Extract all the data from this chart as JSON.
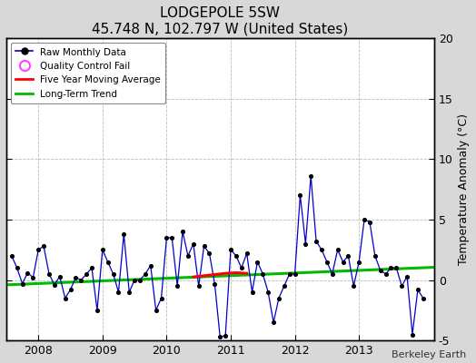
{
  "title": "LODGEPOLE 5SW",
  "subtitle": "45.748 N, 102.797 W (United States)",
  "ylabel": "Temperature Anomaly (°C)",
  "credit": "Berkeley Earth",
  "ylim": [
    -5,
    20
  ],
  "yticks": [
    -5,
    0,
    5,
    10,
    15,
    20
  ],
  "xlim": [
    2007.5,
    2014.17
  ],
  "xticks": [
    2008,
    2009,
    2010,
    2011,
    2012,
    2013
  ],
  "background_color": "#d8d8d8",
  "plot_bg_color": "#ffffff",
  "raw_color": "#0000cc",
  "marker_color": "#000000",
  "moving_avg_color": "#ff0000",
  "trend_color": "#00bb00",
  "raw_data_x": [
    2007.583,
    2007.667,
    2007.75,
    2007.833,
    2007.917,
    2008.0,
    2008.083,
    2008.167,
    2008.25,
    2008.333,
    2008.417,
    2008.5,
    2008.583,
    2008.667,
    2008.75,
    2008.833,
    2008.917,
    2009.0,
    2009.083,
    2009.167,
    2009.25,
    2009.333,
    2009.417,
    2009.5,
    2009.583,
    2009.667,
    2009.75,
    2009.833,
    2009.917,
    2010.0,
    2010.083,
    2010.167,
    2010.25,
    2010.333,
    2010.417,
    2010.5,
    2010.583,
    2010.667,
    2010.75,
    2010.833,
    2010.917,
    2011.0,
    2011.083,
    2011.167,
    2011.25,
    2011.333,
    2011.417,
    2011.5,
    2011.583,
    2011.667,
    2011.75,
    2011.833,
    2011.917,
    2012.0,
    2012.083,
    2012.167,
    2012.25,
    2012.333,
    2012.417,
    2012.5,
    2012.583,
    2012.667,
    2012.75,
    2012.833,
    2012.917,
    2013.0,
    2013.083,
    2013.167,
    2013.25,
    2013.333,
    2013.417,
    2013.5,
    2013.583,
    2013.667,
    2013.75,
    2013.833,
    2013.917,
    2014.0
  ],
  "raw_data_y": [
    2.0,
    1.0,
    -0.3,
    0.6,
    0.2,
    2.5,
    2.8,
    0.5,
    -0.4,
    0.3,
    -1.5,
    -0.8,
    0.2,
    0.0,
    0.5,
    1.0,
    -2.5,
    2.5,
    1.5,
    0.5,
    -1.0,
    3.8,
    -1.0,
    0.0,
    0.0,
    0.5,
    1.2,
    -2.5,
    -1.5,
    3.5,
    3.5,
    -0.5,
    4.0,
    2.0,
    3.0,
    -0.5,
    2.8,
    2.2,
    -0.3,
    -4.7,
    -4.6,
    2.5,
    2.0,
    1.0,
    2.2,
    -1.0,
    1.5,
    0.5,
    -1.0,
    -3.5,
    -1.5,
    -0.5,
    0.5,
    0.5,
    7.0,
    3.0,
    8.6,
    3.2,
    2.5,
    1.5,
    0.5,
    2.5,
    1.5,
    2.0,
    -0.5,
    1.5,
    5.0,
    4.8,
    2.0,
    0.8,
    0.5,
    1.0,
    1.0,
    -0.5,
    0.3,
    -4.5,
    -0.8,
    -1.5
  ],
  "moving_avg_x": [
    2010.42,
    2010.58,
    2010.75,
    2010.92,
    2011.08,
    2011.25
  ],
  "moving_avg_y": [
    0.25,
    0.35,
    0.45,
    0.55,
    0.6,
    0.55
  ],
  "trend_x": [
    2007.5,
    2014.17
  ],
  "trend_y": [
    -0.4,
    1.05
  ],
  "figsize": [
    5.24,
    4.0
  ],
  "dpi": 100
}
